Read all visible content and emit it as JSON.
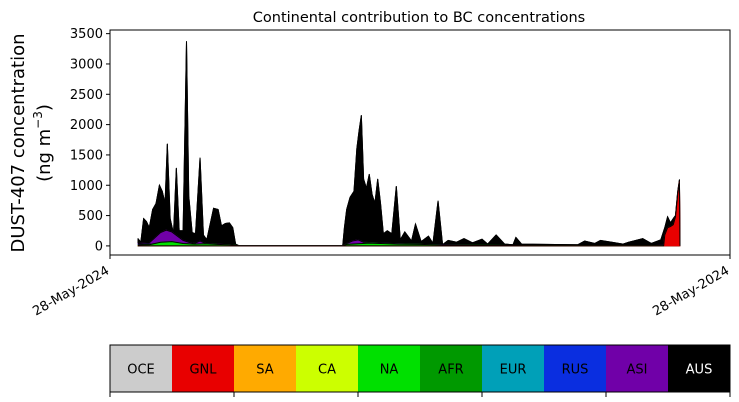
{
  "chart_data": {
    "type": "area",
    "title": "Continental contribution to BC concentrations",
    "ylabel_line1": "DUST-407 concentration",
    "ylabel_line2_prefix": "(ng m",
    "ylabel_line2_exp": "−3",
    "ylabel_line2_suffix": ")",
    "ylim": [
      -150,
      3560
    ],
    "yticks": [
      0,
      500,
      1000,
      1500,
      2000,
      2500,
      3000,
      3500
    ],
    "xtick_labels": [
      "28-May-2024",
      "28-May-2024"
    ],
    "grid": false,
    "x_domain": [
      0,
      100
    ],
    "series": [
      {
        "name": "AUS",
        "color": "#000000",
        "values": [
          [
            0,
            120
          ],
          [
            0.5,
            60
          ],
          [
            1,
            450
          ],
          [
            1.5,
            400
          ],
          [
            2,
            300
          ],
          [
            2.6,
            600
          ],
          [
            3.2,
            700
          ],
          [
            3.8,
            1000
          ],
          [
            4.3,
            900
          ],
          [
            4.8,
            700
          ],
          [
            5.2,
            1680
          ],
          [
            5.7,
            450
          ],
          [
            6.3,
            200
          ],
          [
            6.8,
            1280
          ],
          [
            7.3,
            250
          ],
          [
            8,
            250
          ],
          [
            8.6,
            3370
          ],
          [
            9,
            820
          ],
          [
            9.6,
            220
          ],
          [
            10.2,
            200
          ],
          [
            11,
            1450
          ],
          [
            11.6,
            180
          ],
          [
            12.2,
            100
          ],
          [
            13.4,
            620
          ],
          [
            14.2,
            600
          ],
          [
            14.8,
            330
          ],
          [
            15.5,
            370
          ],
          [
            16.2,
            380
          ],
          [
            16.8,
            300
          ],
          [
            17.3,
            30
          ],
          [
            18,
            0
          ],
          [
            30,
            0
          ],
          [
            36.3,
            0
          ],
          [
            36.6,
            300
          ],
          [
            37,
            600
          ],
          [
            37.6,
            800
          ],
          [
            38.3,
            900
          ],
          [
            38.8,
            1600
          ],
          [
            39.2,
            1900
          ],
          [
            39.6,
            2150
          ],
          [
            40,
            1100
          ],
          [
            40.5,
            950
          ],
          [
            41,
            1180
          ],
          [
            41.5,
            850
          ],
          [
            42,
            700
          ],
          [
            42.5,
            1100
          ],
          [
            43,
            700
          ],
          [
            43.5,
            200
          ],
          [
            44.2,
            250
          ],
          [
            45,
            200
          ],
          [
            45.8,
            980
          ],
          [
            46.5,
            100
          ],
          [
            47.3,
            230
          ],
          [
            48.5,
            80
          ],
          [
            49.2,
            360
          ],
          [
            50.2,
            70
          ],
          [
            51.5,
            160
          ],
          [
            52.3,
            40
          ],
          [
            53.2,
            740
          ],
          [
            54,
            20
          ],
          [
            55,
            90
          ],
          [
            56.5,
            60
          ],
          [
            57.8,
            120
          ],
          [
            59.3,
            50
          ],
          [
            61,
            110
          ],
          [
            62,
            30
          ],
          [
            63.5,
            180
          ],
          [
            65,
            30
          ],
          [
            66.5,
            20
          ],
          [
            67,
            140
          ],
          [
            68,
            30
          ],
          [
            72,
            25
          ],
          [
            78,
            20
          ],
          [
            79.2,
            80
          ],
          [
            81,
            40
          ],
          [
            82,
            90
          ],
          [
            84,
            60
          ],
          [
            86,
            30
          ],
          [
            87,
            60
          ],
          [
            89.5,
            120
          ],
          [
            91,
            40
          ],
          [
            92.7,
            100
          ],
          [
            93.4,
            300
          ],
          [
            93.9,
            480
          ],
          [
            94.4,
            380
          ],
          [
            94.9,
            450
          ],
          [
            95.3,
            500
          ],
          [
            95.7,
            900
          ],
          [
            96,
            1090
          ],
          [
            96.1,
            0
          ]
        ]
      },
      {
        "name": "ASI",
        "color": "#7000a8",
        "values": [
          [
            0,
            40
          ],
          [
            2,
            50
          ],
          [
            4,
            220
          ],
          [
            5,
            260
          ],
          [
            6,
            230
          ],
          [
            7,
            160
          ],
          [
            8,
            90
          ],
          [
            9,
            60
          ],
          [
            10,
            40
          ],
          [
            11,
            80
          ],
          [
            12,
            40
          ],
          [
            14,
            30
          ],
          [
            16,
            20
          ],
          [
            17.3,
            10
          ],
          [
            18,
            0
          ],
          [
            36.3,
            0
          ],
          [
            37,
            40
          ],
          [
            38,
            80
          ],
          [
            39,
            100
          ],
          [
            40,
            60
          ],
          [
            42,
            50
          ],
          [
            45,
            40
          ],
          [
            48,
            30
          ],
          [
            52,
            20
          ],
          [
            60,
            15
          ],
          [
            70,
            10
          ],
          [
            80,
            10
          ],
          [
            90,
            10
          ],
          [
            93.4,
            20
          ],
          [
            96,
            0
          ]
        ]
      },
      {
        "name": "RUS",
        "color": "#0a2ee0",
        "values": [
          [
            0,
            20
          ],
          [
            4,
            40
          ],
          [
            6,
            50
          ],
          [
            8,
            30
          ],
          [
            10,
            20
          ],
          [
            14,
            10
          ],
          [
            18,
            0
          ],
          [
            36.3,
            0
          ],
          [
            38,
            20
          ],
          [
            40,
            30
          ],
          [
            45,
            20
          ],
          [
            55,
            15
          ],
          [
            70,
            15
          ],
          [
            85,
            15
          ],
          [
            93,
            15
          ],
          [
            96,
            0
          ]
        ]
      },
      {
        "name": "NA",
        "color": "#00e000",
        "values": [
          [
            0,
            15
          ],
          [
            2,
            20
          ],
          [
            4,
            60
          ],
          [
            6,
            70
          ],
          [
            8,
            40
          ],
          [
            10,
            30
          ],
          [
            12,
            35
          ],
          [
            14,
            25
          ],
          [
            16,
            20
          ],
          [
            17.3,
            10
          ],
          [
            18,
            0
          ],
          [
            36.3,
            0
          ],
          [
            37,
            25
          ],
          [
            39,
            35
          ],
          [
            41,
            45
          ],
          [
            43,
            40
          ],
          [
            46,
            30
          ],
          [
            50,
            25
          ],
          [
            54,
            15
          ],
          [
            60,
            10
          ],
          [
            70,
            5
          ],
          [
            80,
            5
          ],
          [
            90,
            5
          ],
          [
            96,
            0
          ]
        ]
      },
      {
        "name": "GNL",
        "color": "#e80000",
        "values": [
          [
            0,
            0
          ],
          [
            92,
            0
          ],
          [
            93.2,
            0
          ],
          [
            93.4,
            180
          ],
          [
            93.9,
            300
          ],
          [
            94.4,
            320
          ],
          [
            94.9,
            350
          ],
          [
            95.3,
            480
          ],
          [
            95.7,
            860
          ],
          [
            96,
            1050
          ],
          [
            96.1,
            0
          ]
        ]
      }
    ]
  },
  "colorbar": {
    "labels": [
      "OCE",
      "GNL",
      "SA",
      "CA",
      "NA",
      "AFR",
      "EUR",
      "RUS",
      "ASI",
      "AUS"
    ],
    "colors": [
      "#cccccc",
      "#e80000",
      "#ffaa00",
      "#ccff00",
      "#00e000",
      "#009900",
      "#00a0b8",
      "#0a2ee0",
      "#7000a8",
      "#000000"
    ],
    "text_colors": [
      "#000000",
      "#000000",
      "#000000",
      "#000000",
      "#000000",
      "#000000",
      "#000000",
      "#000000",
      "#000000",
      "#ffffff"
    ]
  }
}
